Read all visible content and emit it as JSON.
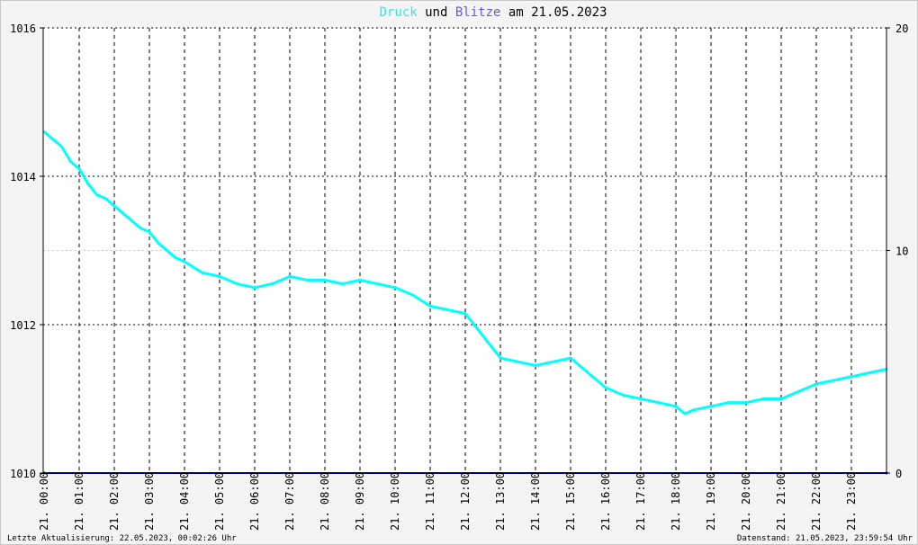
{
  "title": {
    "part1": "Druck",
    "part2": " und ",
    "part3": "Blitze",
    "part4": " am 21.05.2023",
    "color_druck": "#33e6e6",
    "color_blitze": "#6a5acd"
  },
  "footer": {
    "left": "Letzte Aktualisierung: 22.05.2023, 00:02:26 Uhr",
    "right": "Datenstand: 21.05.2023, 23:59:54 Uhr"
  },
  "chart_data": {
    "type": "line",
    "title": "Druck und Blitze am 21.05.2023",
    "x_unit": "hours",
    "xlim": [
      0,
      24
    ],
    "ylim_left": [
      1010,
      1016
    ],
    "ylim_right": [
      0,
      20
    ],
    "y_ticks_left": [
      "1010",
      "1012",
      "1014",
      "1016"
    ],
    "y_ticks_right": [
      "0",
      "10",
      "20"
    ],
    "x_tick_labels": [
      "21. 00:00",
      "21. 01:00",
      "21. 02:00",
      "21. 03:00",
      "21. 04:00",
      "21. 05:00",
      "21. 06:00",
      "21. 07:00",
      "21. 08:00",
      "21. 09:00",
      "21. 10:00",
      "21. 11:00",
      "21. 12:00",
      "21. 13:00",
      "21. 14:00",
      "21. 15:00",
      "21. 16:00",
      "21. 17:00",
      "21. 18:00",
      "21. 19:00",
      "21. 20:00",
      "21. 21:00",
      "21. 22:00",
      "21. 23:00"
    ],
    "grid": true,
    "series": [
      {
        "name": "Druck",
        "axis": "left",
        "color": "#00ffff",
        "x": [
          0,
          0.25,
          0.5,
          0.75,
          1,
          1.25,
          1.5,
          1.75,
          2,
          2.25,
          2.5,
          2.75,
          3,
          3.25,
          3.5,
          3.75,
          4,
          4.5,
          5,
          5.5,
          6,
          6.5,
          7,
          7.5,
          8,
          8.5,
          9,
          9.5,
          10,
          10.5,
          11,
          11.5,
          12,
          12.25,
          12.5,
          12.75,
          13,
          13.5,
          14,
          14.5,
          15,
          15.25,
          15.5,
          15.75,
          16,
          16.5,
          17,
          17.5,
          18,
          18.25,
          18.5,
          19,
          19.5,
          20,
          20.5,
          21,
          21.5,
          22,
          22.5,
          23,
          23.5,
          24
        ],
        "values": [
          1014.6,
          1014.5,
          1014.4,
          1014.2,
          1014.1,
          1013.9,
          1013.75,
          1013.7,
          1013.6,
          1013.5,
          1013.4,
          1013.3,
          1013.25,
          1013.1,
          1013.0,
          1012.9,
          1012.85,
          1012.7,
          1012.65,
          1012.55,
          1012.5,
          1012.55,
          1012.65,
          1012.6,
          1012.6,
          1012.55,
          1012.6,
          1012.55,
          1012.5,
          1012.4,
          1012.25,
          1012.2,
          1012.15,
          1012.0,
          1011.85,
          1011.7,
          1011.55,
          1011.5,
          1011.45,
          1011.5,
          1011.55,
          1011.45,
          1011.35,
          1011.25,
          1011.15,
          1011.05,
          1011.0,
          1010.95,
          1010.9,
          1010.8,
          1010.85,
          1010.9,
          1010.95,
          1010.95,
          1011.0,
          1011.0,
          1011.1,
          1011.2,
          1011.25,
          1011.3,
          1011.35,
          1011.4
        ]
      },
      {
        "name": "Blitze",
        "axis": "right",
        "color": "#00007f",
        "x": [
          0,
          24
        ],
        "values": [
          0,
          0
        ]
      }
    ]
  }
}
